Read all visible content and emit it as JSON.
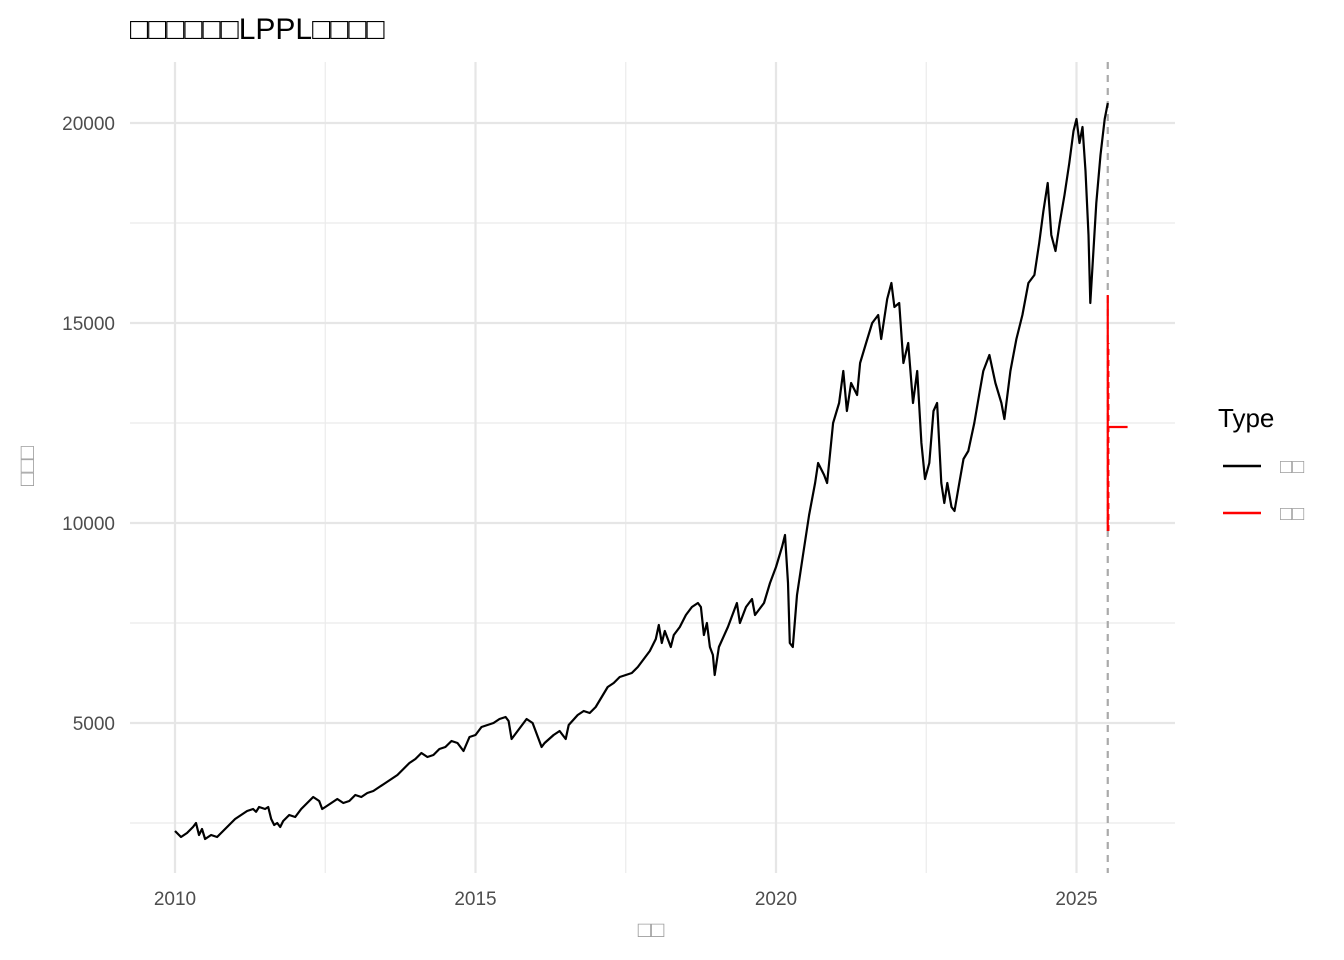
{
  "chart_data": {
    "type": "line",
    "title": "□□□□□□LPPL□□□□",
    "xlabel": "□□",
    "ylabel": "□□□",
    "xlim": [
      2009.7,
      2026.6
    ],
    "ylim": [
      1200,
      21500
    ],
    "x_ticks": [
      {
        "value": 2010,
        "label": "2010"
      },
      {
        "value": 2015,
        "label": "2015"
      },
      {
        "value": 2020,
        "label": "2020"
      },
      {
        "value": 2025,
        "label": "2025"
      }
    ],
    "y_ticks": [
      {
        "value": 5000,
        "label": "5000"
      },
      {
        "value": 10000,
        "label": "10000"
      },
      {
        "value": 15000,
        "label": "15000"
      },
      {
        "value": 20000,
        "label": "20000"
      }
    ],
    "grid": true,
    "legend": {
      "title": "Type",
      "position": "right",
      "entries": [
        {
          "label": "□□",
          "color": "#000000"
        },
        {
          "label": "□□",
          "color": "#ff0000"
        }
      ]
    },
    "critical_date": 2025.52,
    "series": [
      {
        "color": "#000000",
        "points": [
          [
            2010.0,
            2300
          ],
          [
            2010.1,
            2150
          ],
          [
            2010.2,
            2250
          ],
          [
            2010.3,
            2400
          ],
          [
            2010.35,
            2500
          ],
          [
            2010.4,
            2200
          ],
          [
            2010.45,
            2350
          ],
          [
            2010.5,
            2100
          ],
          [
            2010.6,
            2200
          ],
          [
            2010.7,
            2150
          ],
          [
            2010.8,
            2300
          ],
          [
            2010.9,
            2450
          ],
          [
            2011.0,
            2600
          ],
          [
            2011.1,
            2700
          ],
          [
            2011.2,
            2800
          ],
          [
            2011.3,
            2850
          ],
          [
            2011.35,
            2780
          ],
          [
            2011.4,
            2900
          ],
          [
            2011.5,
            2850
          ],
          [
            2011.55,
            2900
          ],
          [
            2011.6,
            2600
          ],
          [
            2011.65,
            2450
          ],
          [
            2011.7,
            2500
          ],
          [
            2011.75,
            2400
          ],
          [
            2011.8,
            2550
          ],
          [
            2011.9,
            2700
          ],
          [
            2012.0,
            2650
          ],
          [
            2012.1,
            2850
          ],
          [
            2012.2,
            3000
          ],
          [
            2012.3,
            3150
          ],
          [
            2012.4,
            3050
          ],
          [
            2012.45,
            2850
          ],
          [
            2012.5,
            2900
          ],
          [
            2012.6,
            3000
          ],
          [
            2012.7,
            3100
          ],
          [
            2012.8,
            3000
          ],
          [
            2012.9,
            3050
          ],
          [
            2013.0,
            3200
          ],
          [
            2013.1,
            3150
          ],
          [
            2013.2,
            3250
          ],
          [
            2013.3,
            3300
          ],
          [
            2013.4,
            3400
          ],
          [
            2013.5,
            3500
          ],
          [
            2013.6,
            3600
          ],
          [
            2013.7,
            3700
          ],
          [
            2013.8,
            3850
          ],
          [
            2013.9,
            4000
          ],
          [
            2014.0,
            4100
          ],
          [
            2014.1,
            4250
          ],
          [
            2014.2,
            4150
          ],
          [
            2014.3,
            4200
          ],
          [
            2014.4,
            4350
          ],
          [
            2014.5,
            4400
          ],
          [
            2014.6,
            4550
          ],
          [
            2014.7,
            4500
          ],
          [
            2014.8,
            4300
          ],
          [
            2014.9,
            4650
          ],
          [
            2015.0,
            4700
          ],
          [
            2015.1,
            4900
          ],
          [
            2015.2,
            4950
          ],
          [
            2015.3,
            5000
          ],
          [
            2015.4,
            5100
          ],
          [
            2015.5,
            5150
          ],
          [
            2015.55,
            5050
          ],
          [
            2015.6,
            4600
          ],
          [
            2015.65,
            4700
          ],
          [
            2015.75,
            4900
          ],
          [
            2015.85,
            5100
          ],
          [
            2015.95,
            5000
          ],
          [
            2016.0,
            4800
          ],
          [
            2016.1,
            4400
          ],
          [
            2016.15,
            4500
          ],
          [
            2016.3,
            4700
          ],
          [
            2016.4,
            4800
          ],
          [
            2016.5,
            4600
          ],
          [
            2016.55,
            4950
          ],
          [
            2016.7,
            5200
          ],
          [
            2016.8,
            5300
          ],
          [
            2016.9,
            5250
          ],
          [
            2017.0,
            5400
          ],
          [
            2017.1,
            5650
          ],
          [
            2017.2,
            5900
          ],
          [
            2017.3,
            6000
          ],
          [
            2017.4,
            6150
          ],
          [
            2017.5,
            6200
          ],
          [
            2017.6,
            6250
          ],
          [
            2017.7,
            6400
          ],
          [
            2017.8,
            6600
          ],
          [
            2017.9,
            6800
          ],
          [
            2018.0,
            7100
          ],
          [
            2018.05,
            7450
          ],
          [
            2018.1,
            7000
          ],
          [
            2018.15,
            7300
          ],
          [
            2018.25,
            6900
          ],
          [
            2018.3,
            7200
          ],
          [
            2018.4,
            7400
          ],
          [
            2018.5,
            7700
          ],
          [
            2018.6,
            7900
          ],
          [
            2018.7,
            8000
          ],
          [
            2018.75,
            7900
          ],
          [
            2018.8,
            7200
          ],
          [
            2018.85,
            7500
          ],
          [
            2018.9,
            6900
          ],
          [
            2018.95,
            6700
          ],
          [
            2018.98,
            6200
          ],
          [
            2019.05,
            6900
          ],
          [
            2019.2,
            7400
          ],
          [
            2019.3,
            7800
          ],
          [
            2019.35,
            8000
          ],
          [
            2019.4,
            7500
          ],
          [
            2019.5,
            7900
          ],
          [
            2019.6,
            8100
          ],
          [
            2019.65,
            7700
          ],
          [
            2019.7,
            7800
          ],
          [
            2019.8,
            8000
          ],
          [
            2019.9,
            8500
          ],
          [
            2020.0,
            8900
          ],
          [
            2020.1,
            9400
          ],
          [
            2020.15,
            9700
          ],
          [
            2020.2,
            8500
          ],
          [
            2020.23,
            7000
          ],
          [
            2020.28,
            6900
          ],
          [
            2020.35,
            8200
          ],
          [
            2020.45,
            9200
          ],
          [
            2020.55,
            10200
          ],
          [
            2020.65,
            11000
          ],
          [
            2020.7,
            11500
          ],
          [
            2020.8,
            11200
          ],
          [
            2020.85,
            11000
          ],
          [
            2020.95,
            12500
          ],
          [
            2021.05,
            13000
          ],
          [
            2021.12,
            13800
          ],
          [
            2021.18,
            12800
          ],
          [
            2021.25,
            13500
          ],
          [
            2021.35,
            13200
          ],
          [
            2021.4,
            14000
          ],
          [
            2021.5,
            14500
          ],
          [
            2021.6,
            15000
          ],
          [
            2021.7,
            15200
          ],
          [
            2021.75,
            14600
          ],
          [
            2021.85,
            15600
          ],
          [
            2021.92,
            16000
          ],
          [
            2021.97,
            15400
          ],
          [
            2022.05,
            15500
          ],
          [
            2022.12,
            14000
          ],
          [
            2022.2,
            14500
          ],
          [
            2022.28,
            13000
          ],
          [
            2022.35,
            13800
          ],
          [
            2022.42,
            12000
          ],
          [
            2022.48,
            11100
          ],
          [
            2022.55,
            11500
          ],
          [
            2022.62,
            12800
          ],
          [
            2022.68,
            13000
          ],
          [
            2022.75,
            11000
          ],
          [
            2022.8,
            10500
          ],
          [
            2022.85,
            11000
          ],
          [
            2022.92,
            10400
          ],
          [
            2022.97,
            10300
          ],
          [
            2023.05,
            11000
          ],
          [
            2023.12,
            11600
          ],
          [
            2023.2,
            11800
          ],
          [
            2023.3,
            12500
          ],
          [
            2023.38,
            13200
          ],
          [
            2023.45,
            13800
          ],
          [
            2023.55,
            14200
          ],
          [
            2023.65,
            13500
          ],
          [
            2023.75,
            13000
          ],
          [
            2023.8,
            12600
          ],
          [
            2023.9,
            13800
          ],
          [
            2024.0,
            14600
          ],
          [
            2024.1,
            15200
          ],
          [
            2024.2,
            16000
          ],
          [
            2024.3,
            16200
          ],
          [
            2024.38,
            17000
          ],
          [
            2024.45,
            17800
          ],
          [
            2024.52,
            18500
          ],
          [
            2024.58,
            17200
          ],
          [
            2024.65,
            16800
          ],
          [
            2024.72,
            17500
          ],
          [
            2024.8,
            18200
          ],
          [
            2024.88,
            19000
          ],
          [
            2024.95,
            19800
          ],
          [
            2025.0,
            20100
          ],
          [
            2025.05,
            19500
          ],
          [
            2025.1,
            19900
          ],
          [
            2025.15,
            18800
          ],
          [
            2025.2,
            17200
          ],
          [
            2025.23,
            15500
          ],
          [
            2025.27,
            16500
          ],
          [
            2025.33,
            18000
          ],
          [
            2025.4,
            19200
          ],
          [
            2025.47,
            20100
          ],
          [
            2025.52,
            20500
          ]
        ]
      },
      {
        "color": "#ff0000",
        "vertical": {
          "x": 2025.52,
          "y_from": 9800,
          "y_to": 15700
        },
        "horizontal": {
          "y": 12400,
          "x_from": 2025.52,
          "x_to": 2025.85
        },
        "dashed": {
          "x": 2025.53,
          "y_from": 9800,
          "y_to": 14500
        }
      }
    ]
  }
}
